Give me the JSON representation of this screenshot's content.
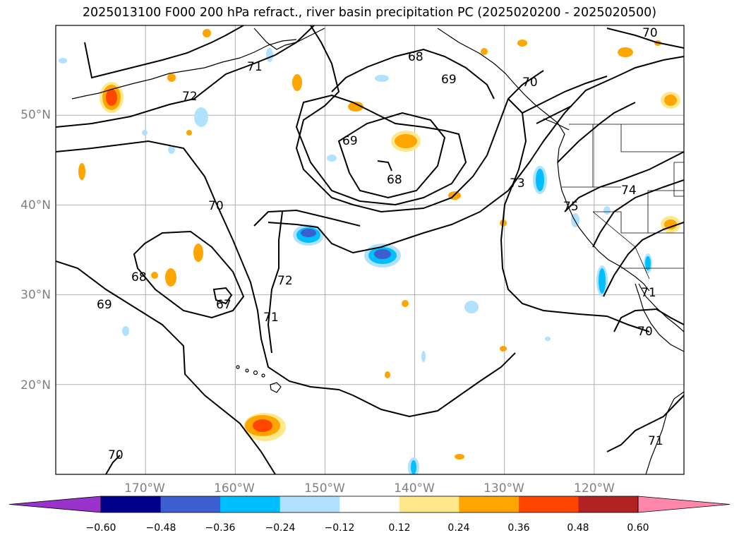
{
  "title": "2025013100 F000 200 hPa refract., river basin precipitation PC (2025020200 - 2025020500)",
  "map": {
    "lat_ticks": [
      "50°N",
      "40°N",
      "30°N",
      "20°N"
    ],
    "lon_ticks": [
      "170°W",
      "160°W",
      "150°W",
      "140°W",
      "130°W",
      "120°W"
    ],
    "lon_range": [
      -180,
      -110
    ],
    "lat_range": [
      10,
      60
    ],
    "grid": true
  },
  "contour_labels": [
    "70",
    "68",
    "71",
    "69",
    "70",
    "72",
    "69",
    "68",
    "73",
    "74",
    "70",
    "75",
    "68",
    "72",
    "67",
    "69",
    "71",
    "71",
    "70",
    "70",
    "71"
  ],
  "colorbar": {
    "tick_labels": [
      "−0.60",
      "−0.48",
      "−0.36",
      "−0.24",
      "−0.12",
      "0.12",
      "0.24",
      "0.36",
      "0.48",
      "0.60"
    ],
    "colors": [
      "#9933cc",
      "#00008b",
      "#3b5fcf",
      "#00bfff",
      "#b0e2ff",
      "#ffffff",
      "#ffe88a",
      "#ffa500",
      "#ff4500",
      "#b22222",
      "#ff88aa"
    ]
  }
}
